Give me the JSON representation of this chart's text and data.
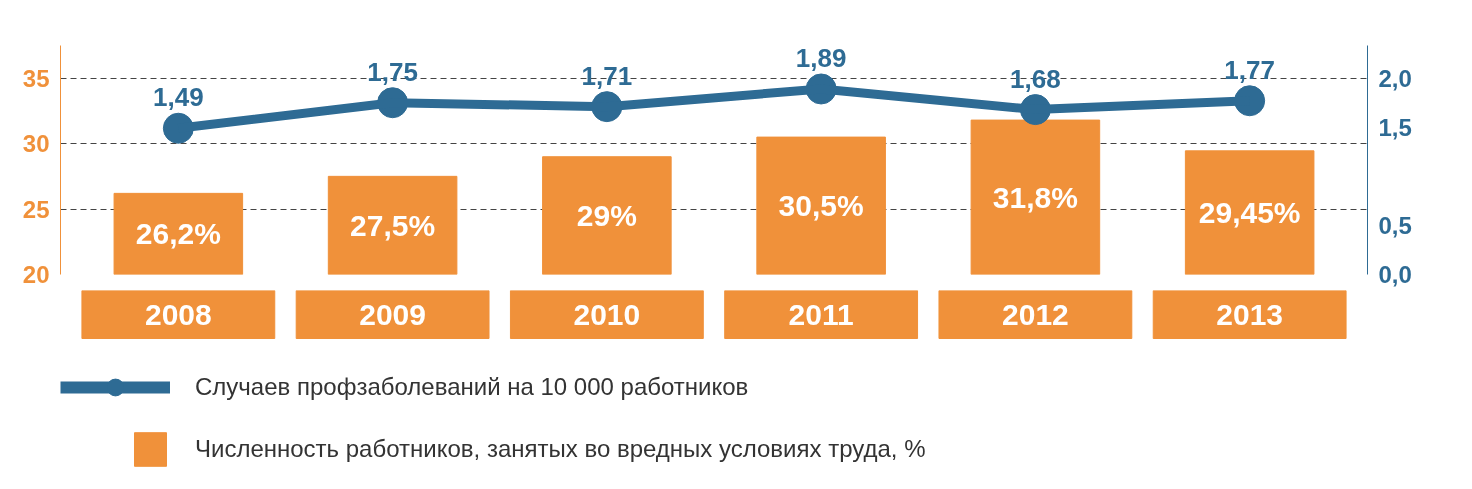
{
  "chart_data": {
    "type": "bar",
    "categories": [
      "2008",
      "2009",
      "2010",
      "2011",
      "2012",
      "2013"
    ],
    "series": [
      {
        "name": "Численность работников, занятых во вредных условиях труда, %",
        "color": "#f0913a",
        "values": [
          26.2,
          27.5,
          29,
          30.5,
          31.8,
          29.45
        ],
        "value_labels": [
          "26,2%",
          "27,5%",
          "29%",
          "30,5%",
          "31,8%",
          "29,45%"
        ]
      },
      {
        "name": "Случаев профзаболеваний на 10 000 работников",
        "type": "line",
        "axis": "y2",
        "color": "#2e6b94",
        "values": [
          1.49,
          1.75,
          1.71,
          1.89,
          1.68,
          1.77
        ],
        "value_labels": [
          "1,49",
          "1,75",
          "1,71",
          "1,89",
          "1,68",
          "1,77"
        ]
      }
    ],
    "ylim": [
      20,
      37.5
    ],
    "yticks": [
      20,
      25,
      30,
      35
    ],
    "y2lim": [
      0,
      2.333
    ],
    "y2ticks": [
      {
        "value": 0,
        "label": "0,0"
      },
      {
        "value": 0.5,
        "label": "0,5"
      },
      {
        "value": 1.5,
        "label": "1,5"
      },
      {
        "value": 2.0,
        "label": "2,0"
      }
    ],
    "grid": "y",
    "legend": "bottom",
    "marker": "circle",
    "line_style": "solid"
  }
}
